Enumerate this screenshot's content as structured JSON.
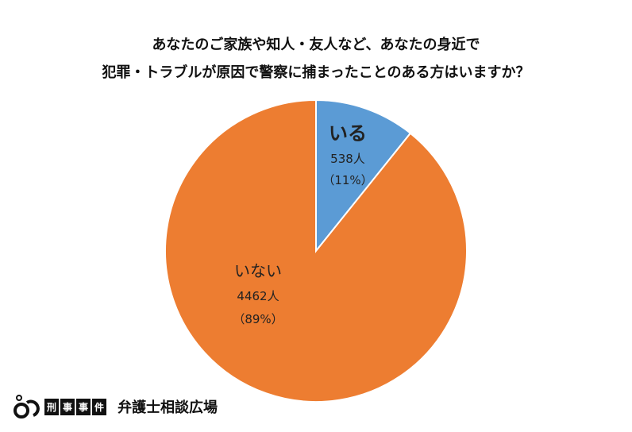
{
  "chart_data": {
    "type": "pie",
    "title_lines": [
      "あなたのご家族や知人・友人など、あなたの身近で",
      "犯罪・トラブルが原因で警察に捕まったことのある方はいますか？"
    ],
    "slices": [
      {
        "label": "いる",
        "value": 538,
        "value_label": "538人",
        "percent_label": "（11%）",
        "color": "#5B9BD5"
      },
      {
        "label": "いない",
        "value": 4462,
        "value_label": "4462人",
        "percent_label": "（89%）",
        "color": "#ED7D31"
      }
    ],
    "start": "top",
    "direction": "clockwise"
  },
  "logo": {
    "kanji": [
      "刑",
      "事",
      "事",
      "件"
    ],
    "text": "弁護士相談広場"
  }
}
